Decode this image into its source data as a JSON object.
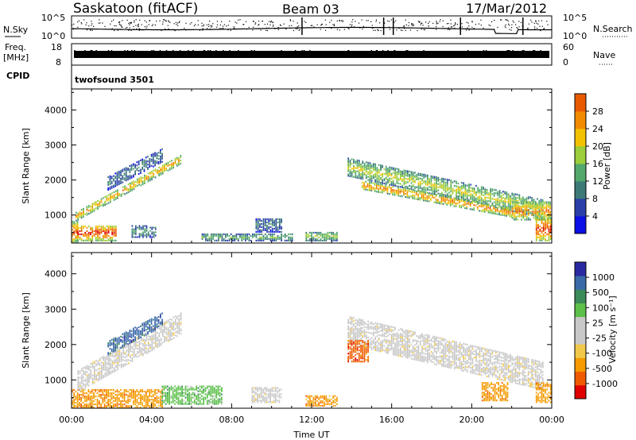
{
  "header": {
    "site": "Saskatoon (fitACF)",
    "beam": "Beam 03",
    "date": "17/Mar/2012"
  },
  "labels": {
    "nsky": "N.Sky",
    "nsearch": "N.Search",
    "freq_top": "Freq.",
    "freq_unit": "[MHz]",
    "nave": "Nave",
    "cpid": "CPID",
    "cpid_value": "twofsound 3501",
    "nsky_ticks": [
      "10^5",
      "10^0"
    ],
    "freq_ticks": [
      "18",
      "8"
    ],
    "nave_ticks": [
      "60",
      "0"
    ]
  },
  "colors": {
    "power": [
      "#0a10e6",
      "#2a3fa8",
      "#3c7a78",
      "#52a86a",
      "#9ccd3a",
      "#f2c200",
      "#f28a00",
      "#e95a00",
      "#dd0000"
    ],
    "velocity": [
      "#e00000",
      "#ef5a00",
      "#f59a00",
      "#f2c84a",
      "#c8c8c8",
      "#c8c8c8",
      "#5cc04a",
      "#3b8a5a",
      "#3a6aa8",
      "#2a2aa0"
    ]
  },
  "chart_data": [
    {
      "type": "heatmap",
      "panel": "power",
      "ylabel": "Slant Range [km]",
      "colorbar_label": "Power [dB]",
      "colorbar_ticks": [
        "4",
        "8",
        "12",
        "16",
        "20",
        "24",
        "28"
      ],
      "colorbar_range": [
        0,
        32
      ],
      "x_ticks": [
        "00:00",
        "04:00",
        "08:00",
        "12:00",
        "16:00",
        "20:00",
        "00:00"
      ],
      "x_range_hours": [
        0,
        24
      ],
      "y_ticks": [
        1000,
        2000,
        3000,
        4000
      ],
      "y_range_km": [
        200,
        4600
      ],
      "bands": [
        {
          "t0": 0.0,
          "t1": 0.3,
          "r0": 200,
          "r1": 800,
          "p": 24
        },
        {
          "t0": 0.2,
          "t1": 5.5,
          "r_start": 950,
          "r_end": 2600,
          "width": 260,
          "p": 20
        },
        {
          "t0": 0.2,
          "t1": 2.2,
          "r0": 250,
          "r1": 700,
          "p": 26
        },
        {
          "t0": 3.0,
          "t1": 4.2,
          "r0": 350,
          "r1": 700,
          "p": 10
        },
        {
          "t0": 1.8,
          "t1": 4.5,
          "r_start": 1900,
          "r_end": 2700,
          "width": 400,
          "p": 8
        },
        {
          "t0": 6.5,
          "t1": 11.0,
          "r0": 250,
          "r1": 450,
          "p": 12
        },
        {
          "t0": 9.2,
          "t1": 10.5,
          "r0": 500,
          "r1": 900,
          "p": 8
        },
        {
          "t0": 11.7,
          "t1": 13.3,
          "r0": 250,
          "r1": 500,
          "p": 14
        },
        {
          "t0": 13.8,
          "t1": 23.6,
          "r_start": 2350,
          "r_end": 1150,
          "width": 500,
          "p": 16
        },
        {
          "t0": 14.5,
          "t1": 22.0,
          "r_start": 1850,
          "r_end": 1050,
          "width": 250,
          "p": 22
        },
        {
          "t0": 22.0,
          "t1": 23.9,
          "r0": 850,
          "r1": 1350,
          "p": 22
        },
        {
          "t0": 23.2,
          "t1": 24.0,
          "r0": 250,
          "r1": 900,
          "p": 26
        }
      ]
    },
    {
      "type": "heatmap",
      "panel": "velocity",
      "ylabel": "Slant Range [km]",
      "colorbar_label": "Velocity [m s⁻¹]",
      "colorbar_ticks": [
        "1000",
        "500",
        "100",
        "25",
        "-25",
        "-100",
        "-500",
        "-1000"
      ],
      "x_ticks": [
        "00:00",
        "04:00",
        "08:00",
        "12:00",
        "16:00",
        "20:00",
        "00:00"
      ],
      "x_range_hours": [
        0,
        24
      ],
      "xlabel": "Time UT",
      "y_ticks": [
        1000,
        2000,
        3000,
        4000
      ],
      "y_range_km": [
        200,
        4600
      ],
      "bands": [
        {
          "t0": 0.0,
          "t1": 4.5,
          "r0": 200,
          "r1": 700,
          "c": 2
        },
        {
          "t0": 0.3,
          "t1": 5.5,
          "r_start": 950,
          "r_end": 2600,
          "width": 600,
          "c": 4
        },
        {
          "t0": 1.8,
          "t1": 4.5,
          "r_start": 1900,
          "r_end": 2700,
          "width": 400,
          "c": 8
        },
        {
          "t0": 4.5,
          "t1": 7.5,
          "r0": 300,
          "r1": 800,
          "c": 6
        },
        {
          "t0": 9.0,
          "t1": 10.5,
          "r0": 350,
          "r1": 800,
          "c": 4
        },
        {
          "t0": 11.7,
          "t1": 13.3,
          "r0": 250,
          "r1": 550,
          "c": 2
        },
        {
          "t0": 13.8,
          "t1": 23.6,
          "r_start": 2400,
          "r_end": 1100,
          "width": 800,
          "c": 4
        },
        {
          "t0": 13.8,
          "t1": 14.8,
          "r0": 1500,
          "r1": 2100,
          "c": 1
        },
        {
          "t0": 20.5,
          "t1": 21.8,
          "r0": 400,
          "r1": 900,
          "c": 2
        },
        {
          "t0": 23.2,
          "t1": 24.0,
          "r0": 350,
          "r1": 900,
          "c": 2
        }
      ]
    }
  ]
}
